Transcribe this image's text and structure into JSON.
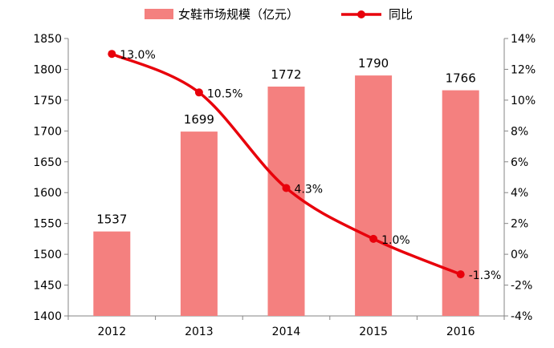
{
  "chart_data": {
    "type": "bar",
    "title": "",
    "categories": [
      "2012",
      "2013",
      "2014",
      "2015",
      "2016"
    ],
    "series": [
      {
        "name": "女鞋市场规模（亿元）",
        "kind": "bar",
        "axis": "left",
        "values": [
          1537,
          1699,
          1772,
          1790,
          1766
        ],
        "labels": [
          "1537",
          "1699",
          "1772",
          "1790",
          "1766"
        ],
        "color": "#F4807F"
      },
      {
        "name": "同比",
        "kind": "line",
        "axis": "right",
        "values": [
          13.0,
          10.5,
          4.3,
          1.0,
          -1.3
        ],
        "labels": [
          "13.0%",
          "10.5%",
          "4.3%",
          "1.0%",
          "-1.3%"
        ],
        "color": "#E8000B"
      }
    ],
    "y_left": {
      "range": [
        1400,
        1850
      ],
      "ticks": [
        "1400",
        "1450",
        "1500",
        "1550",
        "1600",
        "1650",
        "1700",
        "1750",
        "1800",
        "1850"
      ]
    },
    "y_right": {
      "range": [
        -4,
        14
      ],
      "ticks": [
        "-4%",
        "-2%",
        "0%",
        "2%",
        "4%",
        "6%",
        "8%",
        "10%",
        "12%",
        "14%"
      ]
    },
    "grid": false,
    "legend": "top-center"
  }
}
